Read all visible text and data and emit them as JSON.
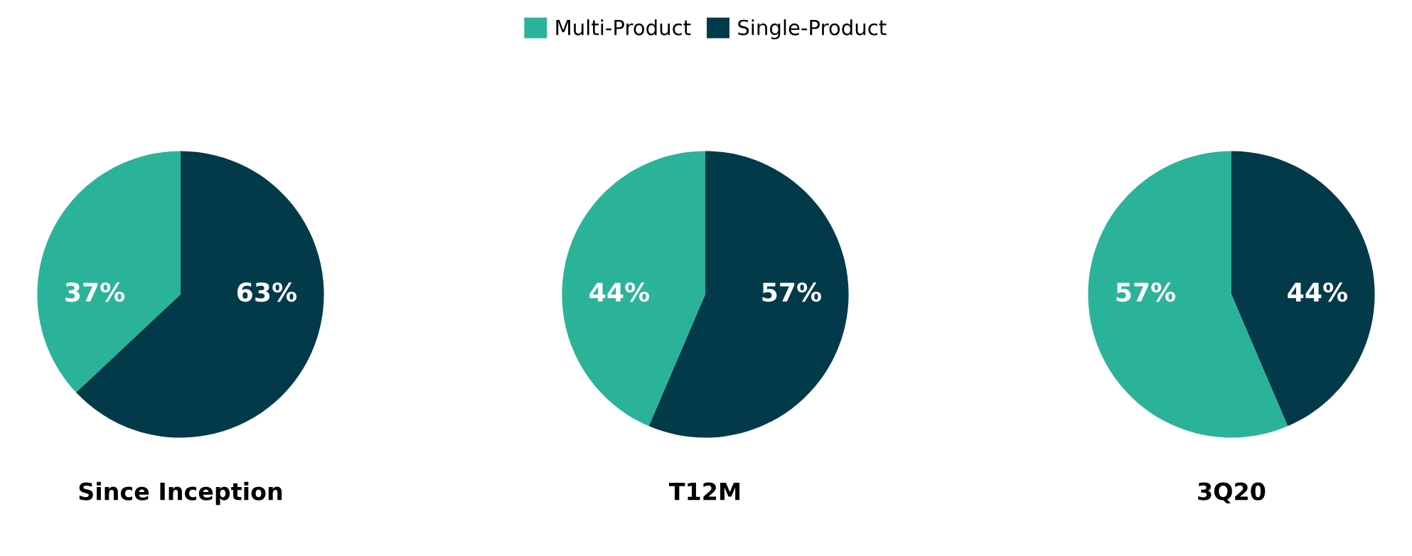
{
  "chart_data": [
    {
      "type": "pie",
      "title": "Since Inception",
      "categories": [
        "Multi-Product",
        "Single-Product"
      ],
      "values": [
        37,
        63
      ],
      "colors": [
        "#2bb39a",
        "#033a4a"
      ],
      "value_labels": [
        "37%",
        "63%"
      ],
      "legend": "top"
    },
    {
      "type": "pie",
      "title": "T12M",
      "categories": [
        null,
        null
      ],
      "values": [
        44,
        57
      ],
      "colors": [
        "#2bb39a",
        "#033a4a"
      ],
      "value_labels": [
        "44%",
        "57%"
      ]
    },
    {
      "type": "pie",
      "title": "3Q20",
      "categories": [
        null,
        null
      ],
      "values": [
        57,
        44
      ],
      "colors": [
        "#2bb39a",
        "#033a4a"
      ],
      "value_labels": [
        "57%",
        "44%"
      ]
    }
  ]
}
